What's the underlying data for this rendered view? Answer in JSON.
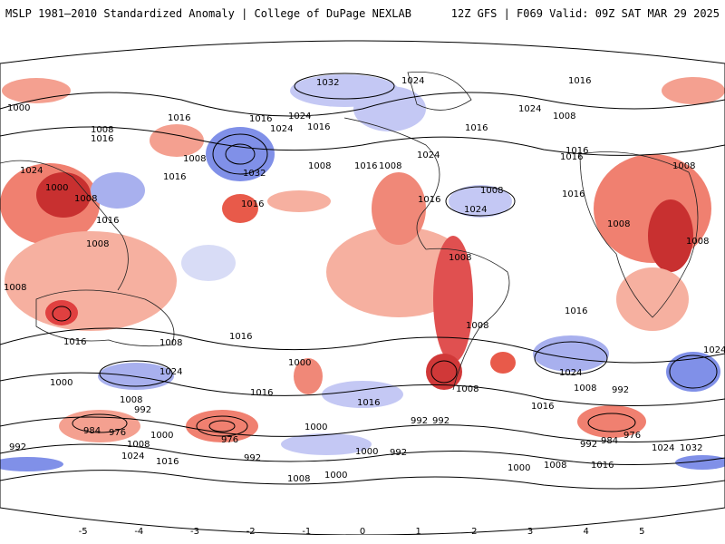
{
  "header": {
    "title": "MSLP 1981–2010 Standardized Anomaly | College of DuPage NEXLAB",
    "run_info": "12Z GFS | F069 Valid: 09Z SAT MAR 29 2025"
  },
  "contour_labels": [
    {
      "text": "1032"
    },
    {
      "text": "1024"
    },
    {
      "text": "1016"
    },
    {
      "text": "1000"
    },
    {
      "text": "1008"
    },
    {
      "text": "1016"
    },
    {
      "text": "1016"
    },
    {
      "text": "1024"
    },
    {
      "text": "1016"
    },
    {
      "text": "1024"
    },
    {
      "text": "1008"
    },
    {
      "text": "1024"
    },
    {
      "text": "1008"
    },
    {
      "text": "1016"
    },
    {
      "text": "1032"
    },
    {
      "text": "1016"
    },
    {
      "text": "1008"
    },
    {
      "text": "1016"
    },
    {
      "text": "1008"
    },
    {
      "text": "1024"
    },
    {
      "text": "1016"
    },
    {
      "text": "1016"
    },
    {
      "text": "1000"
    },
    {
      "text": "1008"
    },
    {
      "text": "1016"
    },
    {
      "text": "1016"
    },
    {
      "text": "1024"
    },
    {
      "text": "1016"
    },
    {
      "text": "1008"
    },
    {
      "text": "1016"
    },
    {
      "text": "1008"
    },
    {
      "text": "1008"
    },
    {
      "text": "1008"
    },
    {
      "text": "1024"
    },
    {
      "text": "1016"
    },
    {
      "text": "1008"
    },
    {
      "text": "1008"
    },
    {
      "text": "1008"
    },
    {
      "text": "1016"
    },
    {
      "text": "1016"
    },
    {
      "text": "1016"
    },
    {
      "text": "1008"
    },
    {
      "text": "1000"
    },
    {
      "text": "1024"
    },
    {
      "text": "1016"
    },
    {
      "text": "1024"
    },
    {
      "text": "1008"
    },
    {
      "text": "992"
    },
    {
      "text": "1000"
    },
    {
      "text": "1016"
    },
    {
      "text": "1008"
    },
    {
      "text": "1016"
    },
    {
      "text": "992"
    },
    {
      "text": "984"
    },
    {
      "text": "976"
    },
    {
      "text": "1008"
    },
    {
      "text": "1000"
    },
    {
      "text": "976"
    },
    {
      "text": "992"
    },
    {
      "text": "992"
    },
    {
      "text": "1000"
    },
    {
      "text": "992"
    },
    {
      "text": "1000"
    },
    {
      "text": "1024"
    },
    {
      "text": "1016"
    },
    {
      "text": "1008"
    },
    {
      "text": "1000"
    },
    {
      "text": "1024"
    },
    {
      "text": "1008"
    },
    {
      "text": "992"
    },
    {
      "text": "992"
    },
    {
      "text": "984"
    },
    {
      "text": "976"
    },
    {
      "text": "1024"
    },
    {
      "text": "1032"
    },
    {
      "text": "1000"
    },
    {
      "text": "1008"
    },
    {
      "text": "1016"
    },
    {
      "text": "1008"
    },
    {
      "text": "992"
    }
  ],
  "colorbar": {
    "ticks": [
      "-5",
      "-4",
      "-3",
      "-2",
      "-1",
      "0",
      "1",
      "2",
      "3",
      "4",
      "5"
    ],
    "colors": [
      "#7a0000",
      "#c20a0a",
      "#e63232",
      "#f06e6e",
      "#f8a89a",
      "#fcd8cc",
      "#ffffff",
      "#d4d8f4",
      "#a6aeee",
      "#7680e6",
      "#3c46dc",
      "#0a14c8"
    ]
  },
  "colors": {
    "positive_anomaly": "#8090e8",
    "negative_anomaly": "#f07060",
    "contour": "#000000",
    "coastline": "#000000"
  }
}
